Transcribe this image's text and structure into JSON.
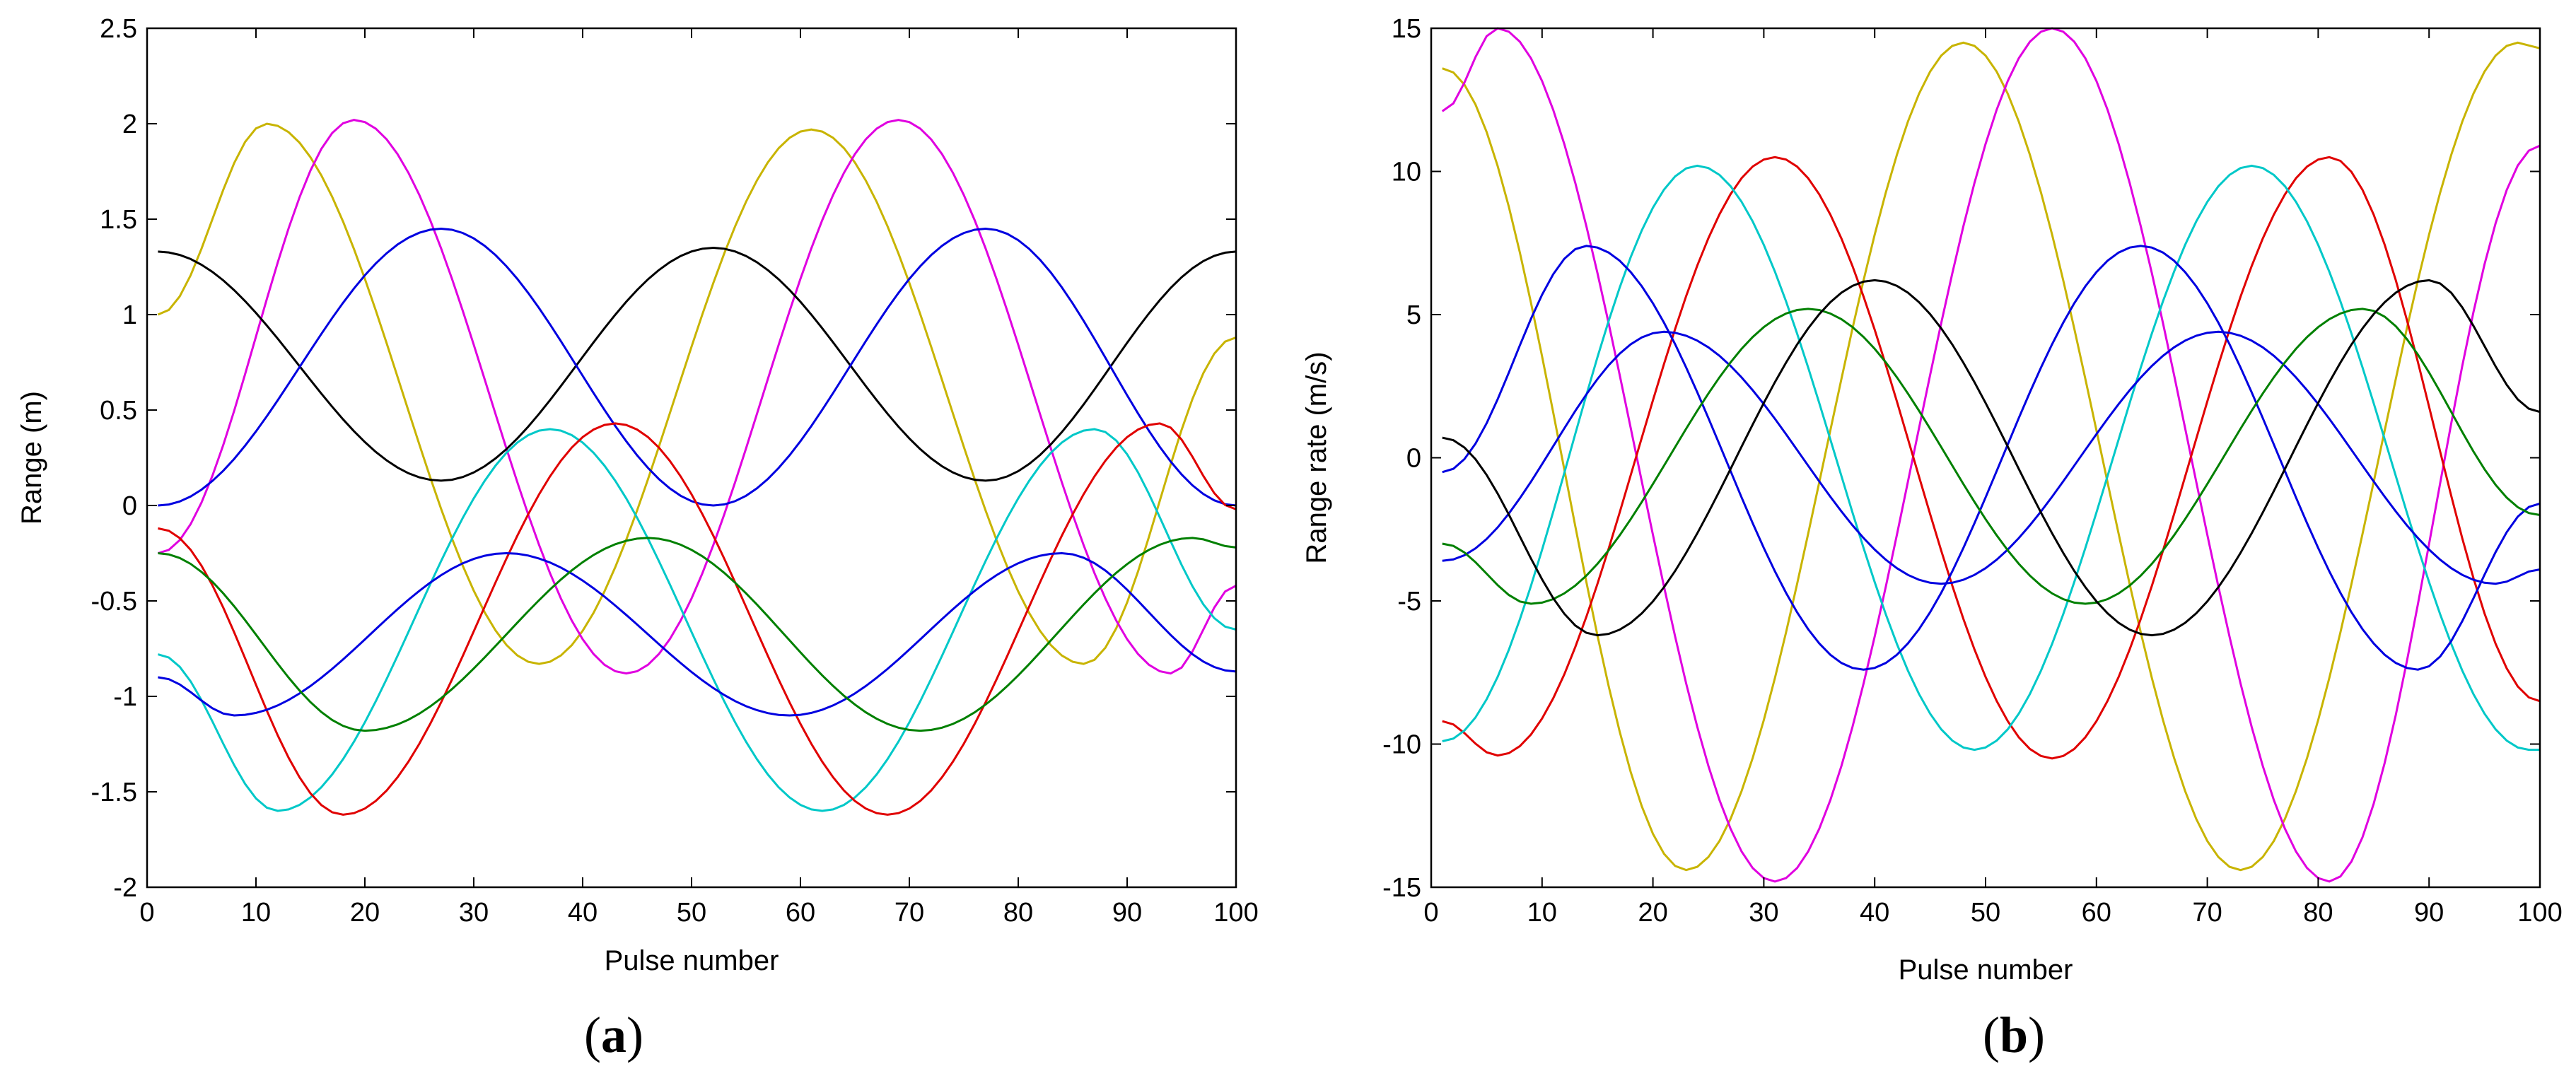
{
  "chart_data": [
    {
      "type": "line",
      "caption_letter": "a",
      "xlabel": "Pulse number",
      "ylabel": "Range (m)",
      "xlim": [
        0,
        100
      ],
      "ylim": [
        -2,
        2.5
      ],
      "xticks": [
        "0",
        "10",
        "20",
        "30",
        "40",
        "50",
        "60",
        "70",
        "80",
        "90",
        "100"
      ],
      "yticks": [
        "-2",
        "-1.5",
        "-1",
        "-0.5",
        "0",
        "0.5",
        "1",
        "1.5",
        "2",
        "2.5"
      ],
      "grid": false,
      "series": [
        {
          "color": "#c8b400",
          "x": [
            1,
            11,
            36,
            61,
            86,
            100
          ],
          "y": [
            1.0,
            2.0,
            -0.83,
            1.97,
            -0.83,
            0.88
          ]
        },
        {
          "color": "#e000e0",
          "x": [
            1,
            19,
            44,
            69,
            94,
            100
          ],
          "y": [
            -0.25,
            2.02,
            -0.88,
            2.02,
            -0.88,
            -0.42
          ]
        },
        {
          "color": "#000000",
          "x": [
            1,
            27,
            52,
            77,
            100
          ],
          "y": [
            1.33,
            0.13,
            1.35,
            0.13,
            1.33
          ]
        },
        {
          "color": "#0000e0",
          "x": [
            1,
            27,
            52,
            77,
            100
          ],
          "y": [
            0.0,
            1.45,
            0.0,
            1.45,
            0.0
          ]
        },
        {
          "color": "#00c8c8",
          "x": [
            1,
            12,
            37,
            62,
            87,
            100
          ],
          "y": [
            -0.78,
            -1.6,
            0.4,
            -1.6,
            0.4,
            -0.65
          ]
        },
        {
          "color": "#e00000",
          "x": [
            1,
            18,
            43,
            68,
            93,
            100
          ],
          "y": [
            -0.12,
            -1.62,
            0.43,
            -1.62,
            0.43,
            -0.02
          ]
        },
        {
          "color": "#0000e0",
          "x": [
            1,
            8,
            33,
            59,
            84,
            100
          ],
          "y": [
            -0.9,
            -1.1,
            -0.25,
            -1.1,
            -0.25,
            -0.87
          ]
        },
        {
          "color": "#008000",
          "x": [
            1,
            20,
            46,
            71,
            96,
            100
          ],
          "y": [
            -0.25,
            -1.18,
            -0.17,
            -1.18,
            -0.17,
            -0.22
          ]
        }
      ]
    },
    {
      "type": "line",
      "caption_letter": "b",
      "xlabel": "Pulse number",
      "ylabel": "Range rate (m/s)",
      "xlim": [
        0,
        100
      ],
      "ylim": [
        -15,
        15
      ],
      "xticks": [
        "0",
        "10",
        "20",
        "30",
        "40",
        "50",
        "60",
        "70",
        "80",
        "90",
        "100"
      ],
      "yticks": [
        "-15",
        "-10",
        "-5",
        "0",
        "5",
        "10",
        "15"
      ],
      "grid": false,
      "series": [
        {
          "color": "#c8b400",
          "x": [
            1,
            23,
            48,
            73,
            98,
            100
          ],
          "y": [
            13.6,
            -14.4,
            14.5,
            -14.4,
            14.5,
            14.3
          ]
        },
        {
          "color": "#e000e0",
          "x": [
            1,
            6,
            31,
            56,
            81,
            100
          ],
          "y": [
            12.1,
            15.0,
            -14.8,
            15.0,
            -14.8,
            10.9
          ]
        },
        {
          "color": "#e00000",
          "x": [
            1,
            6,
            31,
            56,
            81,
            100
          ],
          "y": [
            -9.2,
            -10.4,
            10.5,
            -10.5,
            10.5,
            -8.5
          ]
        },
        {
          "color": "#00c8c8",
          "x": [
            1,
            24,
            49,
            74,
            99,
            100
          ],
          "y": [
            -9.9,
            10.2,
            -10.2,
            10.2,
            -10.2,
            -10.2
          ]
        },
        {
          "color": "#0000e0",
          "x": [
            1,
            14,
            39,
            64,
            89,
            100
          ],
          "y": [
            -0.5,
            7.4,
            -7.4,
            7.4,
            -7.4,
            -1.6
          ]
        },
        {
          "color": "#0000e0",
          "x": [
            1,
            21,
            46,
            71,
            96,
            100
          ],
          "y": [
            -3.6,
            4.4,
            -4.4,
            4.4,
            -4.4,
            -3.9
          ]
        },
        {
          "color": "#008000",
          "x": [
            1,
            9,
            34,
            59,
            84,
            100
          ],
          "y": [
            -3.0,
            -5.1,
            5.2,
            -5.1,
            5.2,
            -2.0
          ]
        },
        {
          "color": "#000000",
          "x": [
            1,
            15,
            40,
            65,
            90,
            100
          ],
          "y": [
            0.7,
            -6.2,
            6.2,
            -6.2,
            6.2,
            1.6
          ]
        }
      ]
    }
  ]
}
